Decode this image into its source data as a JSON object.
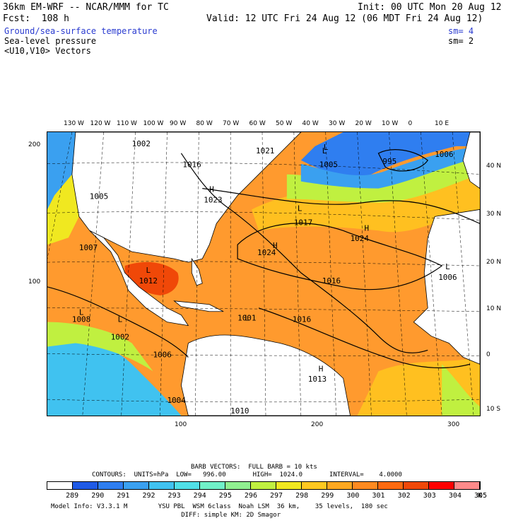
{
  "header": {
    "title": "36km EM-WRF -- NCAR/MMM for TC",
    "fcst": "Fcst:  108 h",
    "init": "Init: 00 UTC Mon 20 Aug 12",
    "valid": "Valid: 12 UTC Fri 24 Aug 12 (06 MDT Fri 24 Aug 12)",
    "field1": "Ground/sea-surface temperature",
    "field1_sm": "sm= 4",
    "field2": "Sea-level pressure",
    "field2_sm": "sm= 2",
    "field3": "<U10,V10> Vectors"
  },
  "map": {
    "top_lon_labels": [
      "130 W",
      "120 W",
      "110 W",
      "100 W",
      "90 W",
      "80 W",
      "70 W",
      "60 W",
      "50 W",
      "40 W",
      "30 W",
      "20 W",
      "10 W",
      "0",
      "10 E"
    ],
    "right_lat_labels": [
      "40 N",
      "30 N",
      "20 N",
      "10 N",
      "0",
      "10 S"
    ],
    "left_grid_labels": [
      "200",
      "100"
    ],
    "bottom_grid_labels": [
      "100",
      "200",
      "300"
    ],
    "pressure_labels": [
      "1002",
      "1016",
      "1023",
      "1021",
      "L",
      "1005",
      "995",
      "1006",
      "1005",
      "L",
      "1017",
      "1024",
      "1024",
      "1016",
      "1016",
      "1012",
      "1001",
      "1008",
      "1002",
      "1006",
      "1013",
      "1004",
      "1010",
      "1006",
      "1007",
      "L",
      "L",
      "L",
      "H",
      "H",
      "H",
      "H",
      "L",
      "L",
      "L"
    ],
    "colors": {
      "land": "#ffffff",
      "ocean_warm": "#ff9a2e",
      "ocean_hot": "#f05a10",
      "ocean_mid": "#ffc020",
      "ocean_cool": "#b8e040",
      "ocean_cold": "#40c8e8",
      "ocean_coldest": "#2878f0"
    }
  },
  "footer": {
    "barb_vectors": "BARB VECTORS:  FULL BARB = 10 kts",
    "contours_label": "CONTOURS:  UNITS=hPa  LOW=   996.00       HIGH=  1024.0       INTERVAL=    4.0000",
    "colorbar_labels": [
      "289",
      "290",
      "291",
      "292",
      "293",
      "294",
      "295",
      "296",
      "297",
      "298",
      "299",
      "300",
      "301",
      "302",
      "303",
      "304",
      "305"
    ],
    "colorbar_unit": "K",
    "colorbar_colors": [
      "#ffffff",
      "#1f5ae6",
      "#2f7ef0",
      "#3aa0f0",
      "#40c2f0",
      "#50e0e8",
      "#70f0c8",
      "#90f090",
      "#c0f040",
      "#f0e820",
      "#ffc820",
      "#ffa820",
      "#ff8a20",
      "#ff6a10",
      "#f04808",
      "#ff0000",
      "#ff8a8a"
    ],
    "model_info_1": "Model Info: V3.3.1 M        YSU PBL  WSM 6class  Noah LSM  36 km,    35 levels,  180 sec",
    "model_info_2": "                                  DIFF: simple KM: 2D Smagor"
  }
}
